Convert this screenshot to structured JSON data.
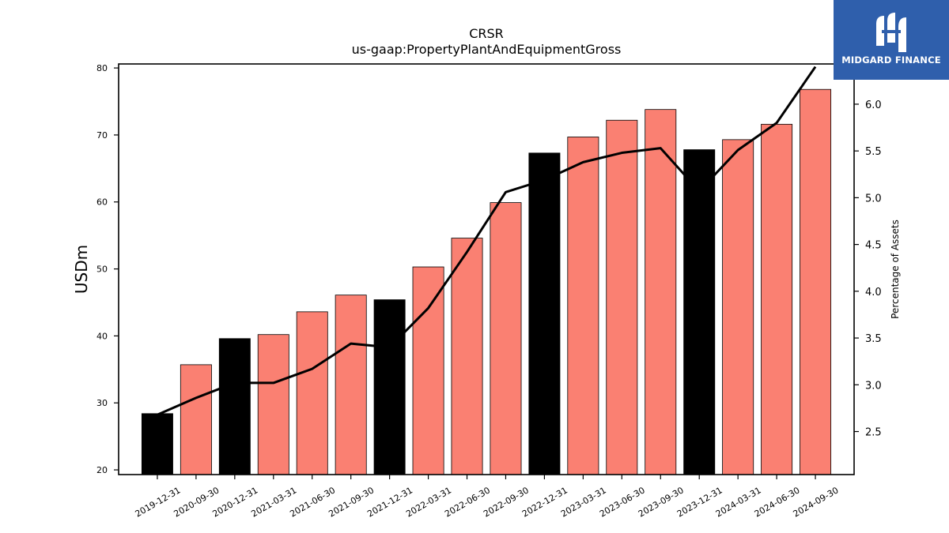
{
  "chart_data": {
    "type": "bar",
    "title": "CRSR",
    "subtitle": "us-gaap:PropertyPlantAndEquipmentGross",
    "ylabel": "USDm",
    "y2label": "Percentage of Assets",
    "categories": [
      "2019-12-31",
      "2020-09-30",
      "2020-12-31",
      "2021-03-31",
      "2021-06-30",
      "2021-09-30",
      "2021-12-31",
      "2022-03-31",
      "2022-06-30",
      "2022-09-30",
      "2022-12-31",
      "2023-03-31",
      "2023-06-30",
      "2023-09-30",
      "2023-12-31",
      "2024-03-31",
      "2024-06-30",
      "2024-09-30"
    ],
    "series": [
      {
        "kind": "bar",
        "axis": "left",
        "values": [
          28.4,
          35.7,
          39.6,
          40.2,
          43.6,
          46.1,
          45.4,
          50.3,
          54.6,
          59.9,
          67.3,
          69.7,
          72.2,
          73.8,
          67.8,
          69.3,
          71.6,
          76.8
        ],
        "colors": [
          "#000000",
          "#fa8072",
          "#000000",
          "#fa8072",
          "#fa8072",
          "#fa8072",
          "#000000",
          "#fa8072",
          "#fa8072",
          "#fa8072",
          "#000000",
          "#fa8072",
          "#fa8072",
          "#fa8072",
          "#000000",
          "#fa8072",
          "#fa8072",
          "#fa8072"
        ]
      },
      {
        "kind": "line",
        "axis": "right",
        "color": "#000000",
        "values": [
          2.68,
          2.86,
          3.02,
          3.02,
          3.17,
          3.44,
          3.4,
          3.82,
          4.42,
          5.06,
          5.19,
          5.38,
          5.48,
          5.53,
          5.07,
          5.51,
          5.8,
          6.4
        ]
      }
    ],
    "ylim": [
      19.3,
      80.6
    ],
    "y2lim": [
      2.04,
      6.43
    ],
    "yticks": [
      20,
      30,
      40,
      50,
      60,
      70,
      80
    ],
    "y2ticks": [
      "2.5",
      "3.0",
      "3.5",
      "4.0",
      "4.5",
      "5.0",
      "5.5",
      "6.0"
    ],
    "grid": false,
    "legend": "none"
  },
  "logo": {
    "text": "MIDGARD FINANCE",
    "background": "#2f5fac"
  }
}
